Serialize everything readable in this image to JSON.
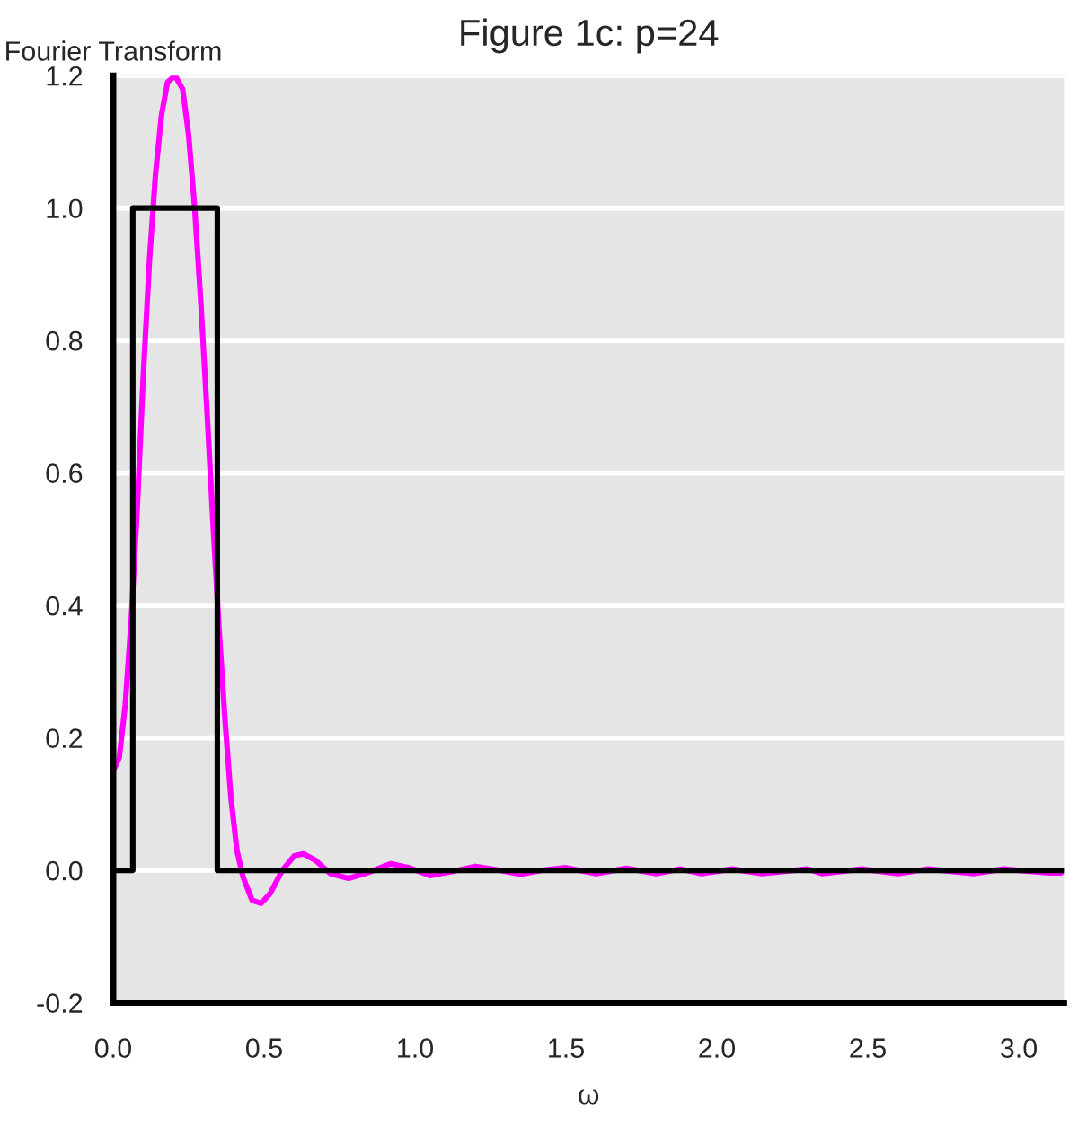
{
  "chart_data": {
    "type": "line",
    "title": "Figure 1c: p=24",
    "xlabel": "ω",
    "ylabel": "Fourier Transform",
    "xlim": [
      0,
      3.15
    ],
    "ylim": [
      -0.2,
      1.2
    ],
    "xticks": [
      {
        "value": 0,
        "label": "0.0"
      },
      0.5,
      {
        "value": 1,
        "label": "1.0"
      },
      1.5,
      {
        "value": 2,
        "label": "2.0"
      },
      2.5,
      {
        "value": 3,
        "label": "3.0"
      }
    ],
    "yticks": [
      -0.2,
      {
        "value": 0,
        "label": "0.0"
      },
      0.2,
      0.4,
      0.6,
      0.8,
      {
        "value": 1,
        "label": "1.0"
      },
      1.2
    ],
    "grid": "y",
    "legend": false,
    "series": [
      {
        "color": "#ff00ff",
        "x": [
          0,
          0.02,
          0.04,
          0.06,
          0.08,
          0.1,
          0.12,
          0.14,
          0.16,
          0.18,
          0.205,
          0.23,
          0.25,
          0.27,
          0.29,
          0.31,
          0.33,
          0.35,
          0.37,
          0.39,
          0.41,
          0.43,
          0.46,
          0.49,
          0.52,
          0.56,
          0.6,
          0.63,
          0.67,
          0.72,
          0.78,
          0.84,
          0.92,
          0.98,
          1.05,
          1.12,
          1.2,
          1.28,
          1.35,
          1.42,
          1.5,
          1.6,
          1.7,
          1.8,
          1.88,
          1.95,
          2.05,
          2.15,
          2.3,
          2.35,
          2.48,
          2.6,
          2.7,
          2.85,
          2.95,
          3.1,
          3.14
        ],
        "values": [
          0.15,
          0.17,
          0.25,
          0.38,
          0.55,
          0.75,
          0.92,
          1.05,
          1.14,
          1.19,
          1.2,
          1.18,
          1.11,
          1.0,
          0.86,
          0.7,
          0.53,
          0.37,
          0.23,
          0.11,
          0.03,
          -0.01,
          -0.045,
          -0.05,
          -0.035,
          0.0,
          0.022,
          0.025,
          0.015,
          -0.005,
          -0.012,
          -0.004,
          0.01,
          0.004,
          -0.008,
          -0.002,
          0.006,
          0.0,
          -0.006,
          0.0,
          0.004,
          -0.005,
          0.003,
          -0.005,
          0.002,
          -0.005,
          0.002,
          -0.005,
          0.002,
          -0.005,
          0.002,
          -0.005,
          0.002,
          -0.005,
          0.002,
          -0.004,
          -0.004
        ]
      },
      {
        "color": "#000000",
        "x": [
          0,
          0.065,
          0.065,
          0.345,
          0.345,
          3.15
        ],
        "values": [
          0,
          0,
          1,
          1,
          0,
          0
        ]
      }
    ]
  }
}
